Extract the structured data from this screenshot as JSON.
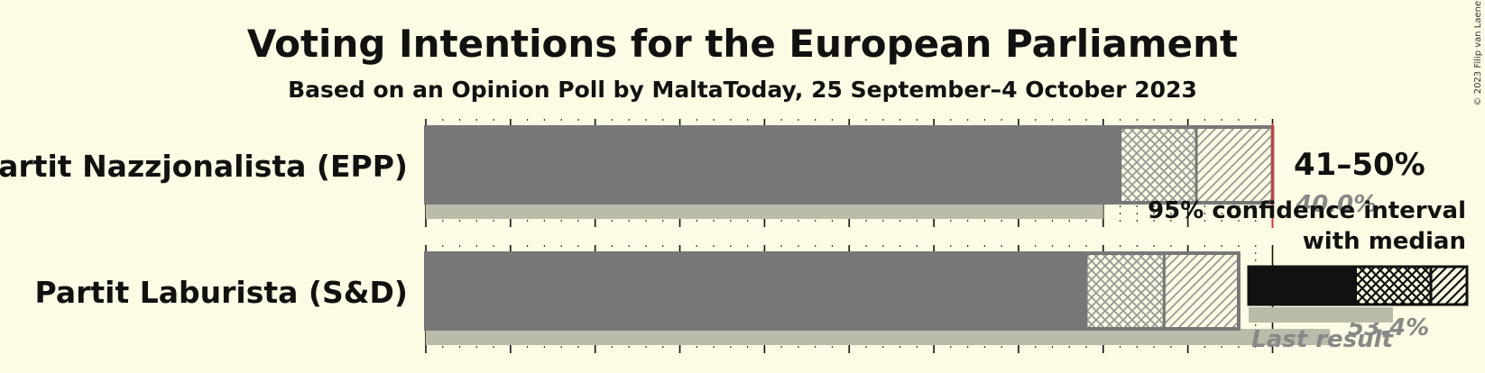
{
  "title": "Voting Intentions for the European Parliament",
  "subtitle": "Based on an Opinion Poll by MaltaToday, 25 September–4 October 2023",
  "copyright": "© 2023 Filip van Laenen",
  "colors": {
    "background": "#FDFBE3",
    "bar": "#777777",
    "last_result": "#BBBBAA",
    "majority_line": "#E8312F",
    "legend_bar": "#111111"
  },
  "chart_data": {
    "type": "bar",
    "orientation": "horizontal",
    "title": "Voting Intentions for the European Parliament",
    "subtitle": "Based on an Opinion Poll by MaltaToday, 25 September–4 October 2023",
    "xlim": [
      0,
      70
    ],
    "grid": true,
    "majority_threshold": 50,
    "categories": [
      "Partit Nazzjonalista (EPP)",
      "Partit Laburista (S&D)"
    ],
    "series": [
      {
        "name": "Partit Nazzjonalista (EPP)",
        "ci_low": 41,
        "ci80_low": 41.4,
        "median": 45.5,
        "ci80_high": 49.7,
        "ci_high": 50,
        "range_label": "41–50%",
        "last_result": 40.0,
        "last_result_label": "40.0%"
      },
      {
        "name": "Partit Laburista (S&D)",
        "ci_low": 39,
        "ci80_low": 39.4,
        "median": 43.6,
        "ci80_high": 47.7,
        "ci_high": 48,
        "range_label": "",
        "last_result": 53.4,
        "last_result_label": "53.4%"
      }
    ]
  },
  "legend": {
    "ci_line1": "95% confidence interval",
    "ci_line2": "with median",
    "last_result": "Last result"
  }
}
